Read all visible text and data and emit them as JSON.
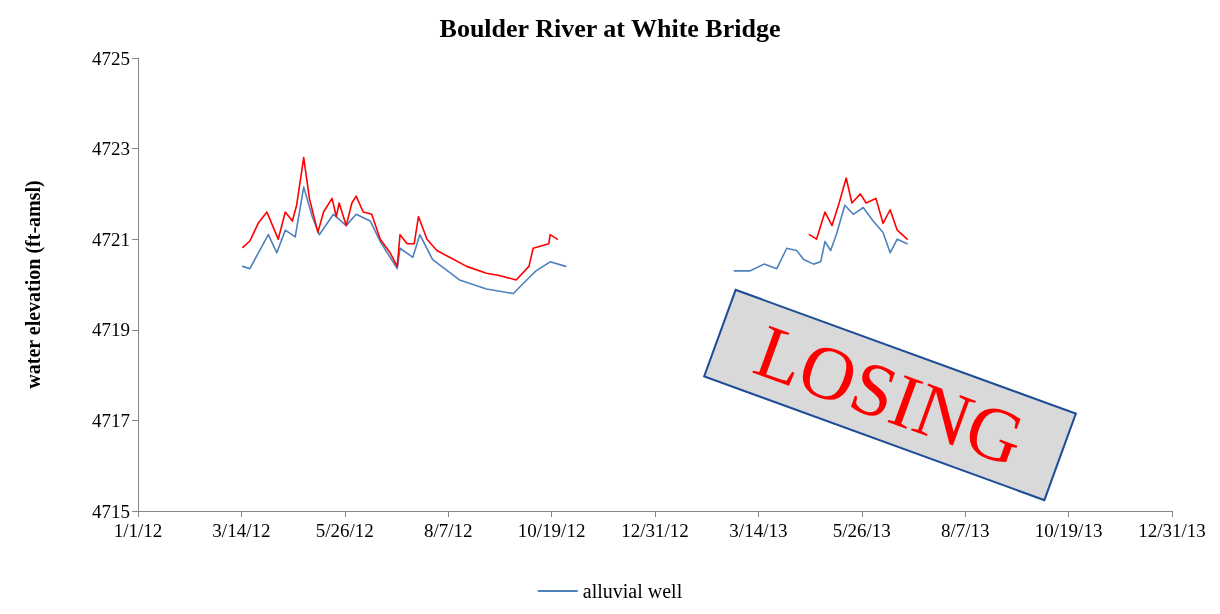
{
  "chart_data": {
    "type": "line",
    "title": "Boulder River at White Bridge",
    "ylabel": "water elevation (ft-amsl)",
    "xlim": [
      "2012-01-01",
      "2013-12-31"
    ],
    "xticks": [
      {
        "value": "2012-01-01",
        "label": "1/1/12"
      },
      {
        "value": "2012-03-14",
        "label": "3/14/12"
      },
      {
        "value": "2012-05-26",
        "label": "5/26/12"
      },
      {
        "value": "2012-08-07",
        "label": "8/7/12"
      },
      {
        "value": "2012-10-19",
        "label": "10/19/12"
      },
      {
        "value": "2012-12-31",
        "label": "12/31/12"
      },
      {
        "value": "2013-03-14",
        "label": "3/14/13"
      },
      {
        "value": "2013-05-26",
        "label": "5/26/13"
      },
      {
        "value": "2013-08-07",
        "label": "8/7/13"
      },
      {
        "value": "2013-10-19",
        "label": "10/19/13"
      },
      {
        "value": "2013-12-31",
        "label": "12/31/13"
      }
    ],
    "ylim": [
      4715,
      4725
    ],
    "yticks": [
      4715,
      4717,
      4719,
      4721,
      4723,
      4725
    ],
    "grid": false,
    "legend": "bottom",
    "marker": "none",
    "line_style": "solid",
    "annotations": [
      "LOSING"
    ],
    "series": [
      {
        "name": "alluvial well",
        "color": "#4f81bd",
        "x": [
          "2012-03-15",
          "2012-03-20",
          "2012-03-26",
          "2012-04-02",
          "2012-04-08",
          "2012-04-14",
          "2012-04-21",
          "2012-04-27",
          "2012-05-03",
          "2012-05-08",
          "2012-05-18",
          "2012-05-27",
          "2012-06-03",
          "2012-06-13",
          "2012-06-20",
          "2012-07-02",
          "2012-07-04",
          "2012-07-13",
          "2012-07-18",
          "2012-07-27",
          "2012-08-15",
          "2012-09-03",
          "2012-09-22",
          "2012-10-03",
          "2012-10-08",
          "2012-10-18",
          "2012-10-29",
          "2013-01-01",
          "2013-02-25",
          "2013-03-08",
          "2013-03-18",
          "2013-03-27",
          "2013-04-03",
          "2013-04-10",
          "2013-04-15",
          "2013-04-22",
          "2013-04-27",
          "2013-04-30",
          "2013-05-04",
          "2013-05-08",
          "2013-05-14",
          "2013-05-20",
          "2013-05-27",
          "2013-06-03",
          "2013-06-10",
          "2013-06-15",
          "2013-06-20",
          "2013-06-27"
        ],
        "values": [
          4720.4,
          4720.35,
          4720.7,
          4721.1,
          4720.7,
          4721.2,
          4721.05,
          4722.15,
          4721.5,
          4721.1,
          4721.55,
          4721.3,
          4721.55,
          4721.4,
          4720.95,
          4720.35,
          4720.8,
          4720.6,
          4721.1,
          4720.55,
          4720.1,
          4719.9,
          4719.8,
          4720.15,
          4720.3,
          4720.5,
          4720.4,
          null,
          4720.3,
          4720.3,
          4720.45,
          4720.35,
          4720.8,
          4720.75,
          4720.55,
          4720.45,
          4720.5,
          4720.95,
          4720.75,
          4721.1,
          4721.75,
          4721.55,
          4721.7,
          4721.4,
          4721.15,
          4720.7,
          4721.0,
          4720.9
        ]
      },
      {
        "color": "#ff0000",
        "x": [
          "2012-03-15",
          "2012-03-20",
          "2012-03-26",
          "2012-04-01",
          "2012-04-05",
          "2012-04-09",
          "2012-04-14",
          "2012-04-19",
          "2012-04-22",
          "2012-04-27",
          "2012-05-01",
          "2012-05-07",
          "2012-05-11",
          "2012-05-17",
          "2012-05-20",
          "2012-05-22",
          "2012-05-27",
          "2012-05-31",
          "2012-06-03",
          "2012-06-08",
          "2012-06-14",
          "2012-06-20",
          "2012-06-27",
          "2012-07-02",
          "2012-07-04",
          "2012-07-09",
          "2012-07-14",
          "2012-07-17",
          "2012-07-23",
          "2012-07-30",
          "2012-08-08",
          "2012-08-20",
          "2012-09-03",
          "2012-09-12",
          "2012-09-24",
          "2012-10-03",
          "2012-10-06",
          "2012-10-17",
          "2012-10-18",
          "2012-10-23",
          "2013-01-01",
          "2013-04-19",
          "2013-04-24",
          "2013-04-30",
          "2013-05-05",
          "2013-05-10",
          "2013-05-15",
          "2013-05-19",
          "2013-05-25",
          "2013-05-29",
          "2013-06-05",
          "2013-06-10",
          "2013-06-15",
          "2013-06-20",
          "2013-06-27"
        ],
        "values": [
          4720.82,
          4720.96,
          4721.36,
          4721.6,
          4721.3,
          4721.0,
          4721.6,
          4721.4,
          4721.75,
          4722.8,
          4721.9,
          4721.15,
          4721.6,
          4721.9,
          4721.5,
          4721.8,
          4721.3,
          4721.8,
          4721.95,
          4721.6,
          4721.55,
          4721.0,
          4720.7,
          4720.4,
          4721.1,
          4720.9,
          4720.9,
          4721.5,
          4721.0,
          4720.75,
          4720.6,
          4720.4,
          4720.25,
          4720.2,
          4720.1,
          4720.4,
          4720.8,
          4720.9,
          4721.1,
          4721.0,
          null,
          4721.1,
          4721.0,
          4721.6,
          4721.3,
          4721.8,
          4722.35,
          4721.8,
          4722.0,
          4721.8,
          4721.9,
          4721.35,
          4721.65,
          4721.2,
          4721.0
        ]
      }
    ]
  }
}
